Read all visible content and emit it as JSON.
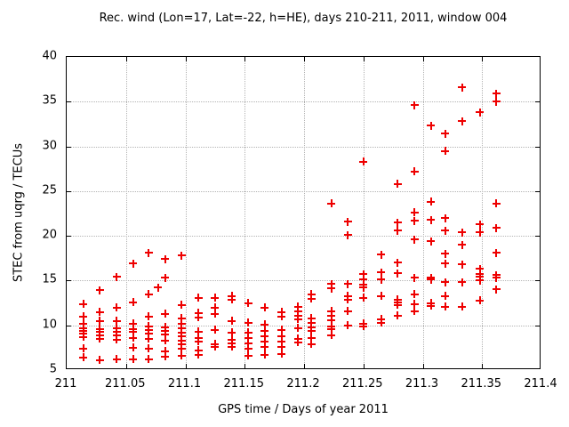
{
  "chart_data": {
    "type": "scatter",
    "title": "Rec. wind (Lon=17, Lat=-22, h=HE), days 210-211, 2011, window 004",
    "xlabel": "GPS time / Days of year 2011",
    "ylabel": "STEC from uqrg / TECUs",
    "xlim": [
      211,
      211.4
    ],
    "ylim": [
      5,
      40
    ],
    "grid": true,
    "legend": "none",
    "marker": {
      "shape": "plus",
      "color": "#ee0000"
    },
    "axis_color": "#000000",
    "grid_color": "#b4b4b4",
    "x_ticks": [
      {
        "value": 211.0,
        "label": "211"
      },
      {
        "value": 211.05,
        "label": "211.05"
      },
      {
        "value": 211.1,
        "label": "211.1"
      },
      {
        "value": 211.15,
        "label": "211.15"
      },
      {
        "value": 211.2,
        "label": "211.2"
      },
      {
        "value": 211.25,
        "label": "211.25"
      },
      {
        "value": 211.3,
        "label": "211.3"
      },
      {
        "value": 211.35,
        "label": "211.35"
      },
      {
        "value": 211.4,
        "label": "211.4"
      }
    ],
    "y_ticks": [
      {
        "value": 5,
        "label": "5"
      },
      {
        "value": 10,
        "label": "10"
      },
      {
        "value": 15,
        "label": "15"
      },
      {
        "value": 20,
        "label": "20"
      },
      {
        "value": 25,
        "label": "25"
      },
      {
        "value": 30,
        "label": "30"
      },
      {
        "value": 35,
        "label": "35"
      },
      {
        "value": 40,
        "label": "40"
      }
    ],
    "series": [
      {
        "t": 211.014,
        "stec": [
          12.4,
          11.0,
          10.2,
          9.7,
          9.4,
          9.1,
          8.7,
          7.4,
          6.4
        ]
      },
      {
        "t": 211.028,
        "stec": [
          13.9,
          11.5,
          10.5,
          9.6,
          9.3,
          8.9,
          8.5,
          6.1
        ]
      },
      {
        "t": 211.042,
        "stec": [
          15.4,
          12.0,
          10.5,
          9.7,
          9.3,
          8.9,
          8.4,
          6.2
        ]
      },
      {
        "t": 211.056,
        "stec": [
          16.9,
          12.6,
          10.2,
          9.6,
          9.3,
          8.6,
          7.5,
          6.2
        ]
      },
      {
        "t": 211.069,
        "stec": [
          18.1,
          13.5,
          11.0,
          9.9,
          9.5,
          9.1,
          8.5,
          7.4,
          6.2
        ]
      },
      {
        "t": 211.077,
        "stec": [
          14.2
        ]
      },
      {
        "t": 211.083,
        "stec": [
          17.4,
          15.3,
          11.3,
          9.8,
          9.4,
          9.0,
          8.3,
          7.1,
          6.5
        ]
      },
      {
        "t": 211.097,
        "stec": [
          17.8,
          12.3,
          10.8,
          10.2,
          9.7,
          9.2,
          8.8,
          8.3,
          7.9,
          7.4,
          6.6
        ]
      },
      {
        "t": 211.111,
        "stec": [
          13.1,
          11.4,
          10.9,
          9.3,
          8.6,
          8.2,
          7.2,
          6.7
        ]
      },
      {
        "t": 211.125,
        "stec": [
          13.1,
          12.0,
          11.3,
          9.5,
          7.9,
          7.6
        ]
      },
      {
        "t": 211.139,
        "stec": [
          13.3,
          12.9,
          10.5,
          9.2,
          8.4,
          8.0,
          7.6
        ]
      },
      {
        "t": 211.153,
        "stec": [
          12.5,
          10.3,
          9.2,
          8.6,
          8.0,
          7.4,
          6.6
        ]
      },
      {
        "t": 211.167,
        "stec": [
          12.0,
          10.1,
          9.4,
          8.8,
          8.2,
          7.6,
          6.7
        ]
      },
      {
        "t": 211.181,
        "stec": [
          11.5,
          11.0,
          9.5,
          8.8,
          8.2,
          7.6,
          6.8
        ]
      },
      {
        "t": 211.195,
        "stec": [
          12.1,
          11.6,
          11.1,
          10.7,
          9.7,
          8.5,
          8.1
        ]
      },
      {
        "t": 211.206,
        "stec": [
          13.5,
          13.0,
          10.8,
          10.3,
          9.8,
          9.4,
          8.6,
          7.9
        ]
      },
      {
        "t": 211.223,
        "stec": [
          23.6,
          14.6,
          14.1,
          11.6,
          11.1,
          10.6,
          9.9,
          9.6,
          8.9
        ]
      },
      {
        "t": 211.237,
        "stec": [
          21.6,
          20.1,
          14.6,
          13.3,
          12.9,
          11.6,
          10.0
        ]
      },
      {
        "t": 211.25,
        "stec": [
          28.3,
          15.7,
          15.1,
          14.5,
          14.2,
          13.1,
          10.2,
          9.9
        ]
      },
      {
        "t": 211.265,
        "stec": [
          17.9,
          15.9,
          15.1,
          13.3,
          10.7,
          10.3
        ]
      },
      {
        "t": 211.279,
        "stec": [
          25.8,
          21.5,
          20.6,
          17.0,
          15.8,
          12.9,
          12.6,
          12.3,
          11.1
        ]
      },
      {
        "t": 211.293,
        "stec": [
          34.6,
          27.2,
          22.6,
          21.7,
          19.6,
          15.3,
          13.5,
          12.4,
          11.6
        ]
      },
      {
        "t": 211.307,
        "stec": [
          32.3,
          23.8,
          21.8,
          19.4,
          15.3,
          15.1,
          12.5,
          12.2
        ]
      },
      {
        "t": 211.319,
        "stec": [
          31.4,
          29.5,
          22.0,
          20.6,
          18.0,
          16.9,
          14.8,
          13.3,
          12.1
        ]
      },
      {
        "t": 211.333,
        "stec": [
          36.6,
          32.8,
          20.4,
          19.0,
          16.8,
          14.8,
          12.1
        ]
      },
      {
        "t": 211.348,
        "stec": [
          33.8,
          21.3,
          20.4,
          16.3,
          15.7,
          15.4,
          15.0,
          12.8
        ]
      },
      {
        "t": 211.362,
        "stec": [
          35.9,
          35.0,
          23.6,
          20.9,
          18.1,
          15.6,
          15.3,
          14.0
        ]
      }
    ]
  }
}
